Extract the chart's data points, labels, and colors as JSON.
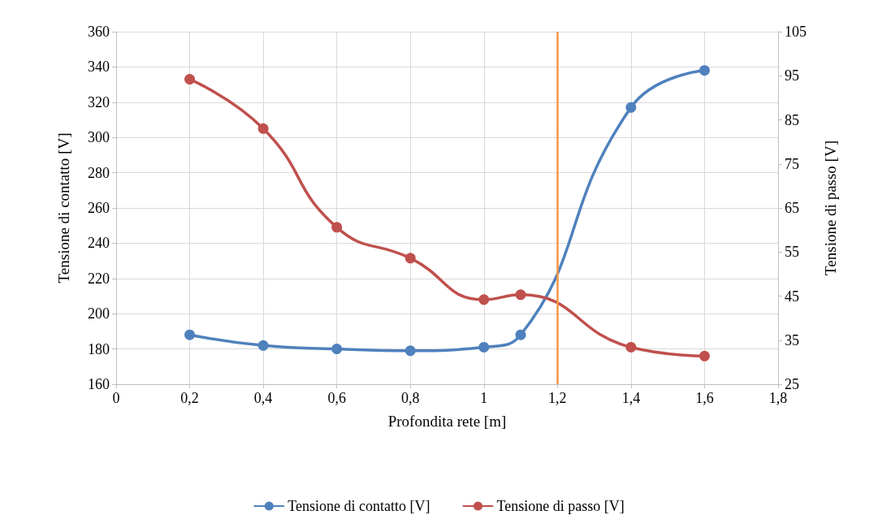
{
  "chart_data": {
    "type": "line",
    "xlabel": "Profondita rete [m]",
    "ylabel": "Tensione di contatto [V]",
    "y2label": "Tensione di passo [V]",
    "xlim": [
      0,
      1.8
    ],
    "xticks": [
      0,
      {
        "value": 0.2,
        "label": "0,2"
      },
      {
        "value": 0.4,
        "label": "0,4"
      },
      {
        "value": 0.6,
        "label": "0,6"
      },
      {
        "value": 0.8,
        "label": "0,8"
      },
      1,
      {
        "value": 1.2,
        "label": "1,2"
      },
      {
        "value": 1.4,
        "label": "1,4"
      },
      {
        "value": 1.6,
        "label": "1,6"
      },
      {
        "value": 1.8,
        "label": "1,8"
      }
    ],
    "ylim": [
      160,
      360
    ],
    "yticks": [
      160,
      180,
      200,
      220,
      240,
      260,
      280,
      300,
      320,
      340,
      360
    ],
    "y2lim": [
      25,
      105
    ],
    "y2ticks": [
      25,
      35,
      45,
      55,
      65,
      75,
      85,
      95,
      105
    ],
    "x": [
      0.2,
      0.4,
      0.6,
      0.8,
      1.0,
      1.1,
      1.4,
      1.6
    ],
    "series": [
      {
        "name": "Tensione di contatto [V]",
        "color": "#4f81bd",
        "values": [
          188,
          182,
          180,
          179,
          181,
          188,
          317,
          338
        ]
      },
      {
        "name": "Tensione di passo [V]",
        "color": "#c0504d",
        "axis": "y2",
        "values": [
          94.2,
          83,
          60.6,
          53.6,
          44.2,
          45.3,
          33.4,
          31.4
        ]
      }
    ],
    "ref_lines": [
      {
        "axis": "x",
        "value": 1.2,
        "color": "#f79646"
      }
    ],
    "grid": true,
    "legend": "bottom",
    "marker": "circle",
    "line_style": "solid"
  }
}
